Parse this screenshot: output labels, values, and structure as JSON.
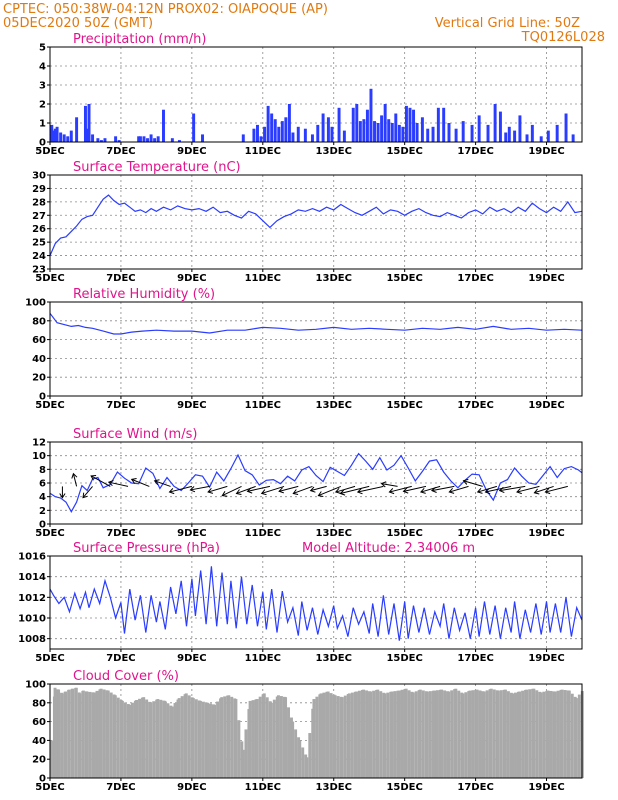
{
  "header": {
    "source_line": "CPTEC:    050:38W-04:12N   PROX02: OIAPOQUE (AP)",
    "date_line": "05DEC2020 50Z (GMT)",
    "grid_line": "Vertical Grid Line: 50Z",
    "code": "TQ0126L028"
  },
  "colors": {
    "header": "#e07a10",
    "title": "#e0148c",
    "line": "#2a3cff",
    "bar": "#2a3cff",
    "cloud": "#a9a9a9",
    "wind_arrow": "#000000",
    "grid": "#8a8a8a"
  },
  "x_axis": {
    "labels": [
      "5DEC",
      "7DEC",
      "9DEC",
      "11DEC",
      "13DEC",
      "15DEC",
      "17DEC",
      "19DEC"
    ],
    "day_range": [
      5,
      20
    ]
  },
  "chart_data": [
    {
      "id": "precip",
      "type": "bar",
      "title": "Precipitation (mm/h)",
      "ylim": [
        0,
        5
      ],
      "yticks": [
        0,
        1,
        2,
        3,
        4,
        5
      ],
      "x": [
        5.05,
        5.1,
        5.15,
        5.2,
        5.3,
        5.4,
        5.5,
        5.6,
        5.75,
        6.0,
        6.05,
        6.1,
        6.2,
        6.35,
        6.45,
        6.55,
        6.85,
        6.95,
        7.5,
        7.55,
        7.65,
        7.75,
        7.85,
        7.95,
        8.05,
        8.2,
        8.45,
        8.65,
        9.05,
        9.3,
        10.45,
        10.75,
        10.85,
        10.95,
        11.05,
        11.15,
        11.25,
        11.35,
        11.45,
        11.55,
        11.65,
        11.75,
        11.85,
        12.0,
        12.2,
        12.4,
        12.55,
        12.7,
        12.85,
        12.95,
        13.15,
        13.3,
        13.55,
        13.65,
        13.75,
        13.85,
        13.95,
        14.05,
        14.15,
        14.25,
        14.35,
        14.45,
        14.55,
        14.65,
        14.75,
        14.85,
        14.95,
        15.05,
        15.15,
        15.25,
        15.35,
        15.5,
        15.65,
        15.8,
        15.95,
        16.1,
        16.25,
        16.45,
        16.65,
        16.9,
        17.1,
        17.35,
        17.55,
        17.7,
        17.85,
        17.95,
        18.1,
        18.25,
        18.45,
        18.6,
        18.85,
        19.05,
        19.3,
        19.55,
        19.75
      ],
      "values": [
        0.9,
        0.6,
        0.7,
        0.8,
        0.5,
        0.4,
        0.3,
        0.6,
        1.3,
        1.9,
        0.7,
        2.0,
        0.4,
        0.2,
        0.1,
        0.2,
        0.3,
        0.1,
        0.3,
        0.3,
        0.3,
        0.2,
        0.4,
        0.2,
        0.3,
        1.7,
        0.2,
        0.1,
        1.5,
        0.4,
        0.4,
        0.7,
        0.9,
        0.3,
        0.8,
        1.9,
        1.5,
        1.2,
        0.8,
        1.1,
        1.3,
        2.0,
        0.5,
        0.8,
        0.7,
        0.4,
        0.9,
        1.5,
        1.3,
        0.8,
        1.8,
        0.6,
        1.8,
        2.0,
        1.1,
        1.2,
        1.7,
        2.8,
        1.1,
        1.0,
        1.4,
        2.0,
        1.2,
        1.0,
        1.5,
        0.9,
        0.8,
        1.9,
        1.8,
        1.7,
        1.0,
        1.3,
        0.7,
        0.8,
        1.8,
        1.8,
        1.0,
        0.7,
        1.1,
        0.9,
        1.4,
        0.9,
        2.0,
        1.6,
        0.5,
        0.8,
        0.6,
        1.4,
        0.4,
        0.9,
        0.3,
        0.6,
        0.9,
        1.5,
        0.4
      ]
    },
    {
      "id": "temp",
      "type": "line",
      "title": "Surface Temperature (nC)",
      "ylim": [
        23,
        30
      ],
      "yticks": [
        23,
        24,
        25,
        26,
        27,
        28,
        29,
        30
      ],
      "x": [
        5.0,
        5.15,
        5.3,
        5.45,
        5.6,
        5.75,
        5.9,
        6.05,
        6.2,
        6.35,
        6.5,
        6.65,
        6.8,
        6.95,
        7.1,
        7.25,
        7.4,
        7.55,
        7.7,
        7.85,
        8.0,
        8.2,
        8.4,
        8.6,
        8.8,
        9.0,
        9.2,
        9.4,
        9.6,
        9.8,
        10.0,
        10.2,
        10.4,
        10.6,
        10.8,
        11.0,
        11.2,
        11.4,
        11.6,
        11.8,
        12.0,
        12.2,
        12.4,
        12.6,
        12.8,
        13.0,
        13.2,
        13.4,
        13.6,
        13.8,
        14.0,
        14.2,
        14.4,
        14.6,
        14.8,
        15.0,
        15.2,
        15.4,
        15.6,
        15.8,
        16.0,
        16.2,
        16.4,
        16.6,
        16.8,
        17.0,
        17.2,
        17.4,
        17.6,
        17.8,
        18.0,
        18.2,
        18.4,
        18.6,
        18.8,
        19.0,
        19.2,
        19.4,
        19.6,
        19.8,
        20.0
      ],
      "values": [
        24.0,
        24.9,
        25.3,
        25.4,
        25.8,
        26.2,
        26.7,
        26.9,
        27.0,
        27.6,
        28.2,
        28.5,
        28.1,
        27.8,
        27.9,
        27.6,
        27.3,
        27.4,
        27.2,
        27.5,
        27.3,
        27.6,
        27.4,
        27.7,
        27.5,
        27.4,
        27.5,
        27.3,
        27.6,
        27.2,
        27.3,
        27.0,
        26.8,
        27.3,
        27.1,
        26.6,
        26.1,
        26.6,
        26.9,
        27.1,
        27.4,
        27.3,
        27.5,
        27.3,
        27.6,
        27.4,
        27.8,
        27.5,
        27.2,
        27.0,
        27.3,
        27.6,
        27.1,
        27.4,
        27.3,
        27.0,
        27.3,
        27.5,
        27.2,
        27.0,
        26.9,
        27.2,
        27.0,
        26.8,
        27.2,
        27.4,
        27.1,
        27.6,
        27.3,
        27.5,
        27.2,
        27.6,
        27.3,
        27.9,
        27.5,
        27.2,
        27.6,
        27.3,
        28.0,
        27.2,
        27.3
      ]
    },
    {
      "id": "rh",
      "type": "line",
      "title": "Relative Humidity (%)",
      "ylim": [
        0,
        100
      ],
      "yticks": [
        0,
        20,
        40,
        60,
        80,
        100
      ],
      "x": [
        5.0,
        5.2,
        5.4,
        5.6,
        5.8,
        6.0,
        6.2,
        6.5,
        6.8,
        7.0,
        7.3,
        7.6,
        8.0,
        8.5,
        9.0,
        9.5,
        10.0,
        10.5,
        11.0,
        11.5,
        12.0,
        12.5,
        13.0,
        13.5,
        14.0,
        14.5,
        15.0,
        15.5,
        16.0,
        16.5,
        17.0,
        17.5,
        18.0,
        18.5,
        19.0,
        19.5,
        20.0
      ],
      "values": [
        88,
        78,
        76,
        74,
        75,
        73,
        72,
        69,
        66,
        66,
        68,
        69,
        70,
        69,
        69,
        67,
        70,
        70,
        73,
        72,
        70,
        71,
        73,
        71,
        72,
        71,
        70,
        72,
        71,
        73,
        71,
        74,
        71,
        72,
        70,
        71,
        70
      ]
    },
    {
      "id": "wind",
      "type": "line",
      "title": "Surface Wind (m/s)",
      "ylim": [
        0,
        12
      ],
      "yticks": [
        0,
        2,
        4,
        6,
        8,
        10,
        12
      ],
      "x": [
        5.0,
        5.15,
        5.3,
        5.45,
        5.6,
        5.75,
        5.9,
        6.05,
        6.2,
        6.35,
        6.5,
        6.7,
        6.9,
        7.1,
        7.3,
        7.5,
        7.7,
        7.9,
        8.1,
        8.3,
        8.5,
        8.7,
        8.9,
        9.1,
        9.3,
        9.5,
        9.7,
        9.9,
        10.1,
        10.3,
        10.5,
        10.7,
        10.9,
        11.1,
        11.3,
        11.5,
        11.7,
        11.9,
        12.1,
        12.3,
        12.5,
        12.7,
        12.9,
        13.1,
        13.3,
        13.5,
        13.7,
        13.9,
        14.1,
        14.3,
        14.5,
        14.7,
        14.9,
        15.1,
        15.3,
        15.5,
        15.7,
        15.9,
        16.1,
        16.3,
        16.5,
        16.7,
        16.9,
        17.1,
        17.3,
        17.5,
        17.7,
        17.9,
        18.1,
        18.3,
        18.5,
        18.7,
        18.9,
        19.1,
        19.3,
        19.5,
        19.7,
        19.9,
        20.0
      ],
      "values": [
        4.5,
        4.0,
        3.8,
        3.2,
        1.8,
        3.2,
        5.6,
        4.9,
        6.6,
        6.8,
        5.3,
        5.8,
        7.6,
        6.7,
        6.0,
        5.9,
        8.2,
        7.4,
        5.2,
        6.8,
        5.5,
        4.9,
        6.0,
        7.2,
        7.0,
        5.4,
        7.6,
        6.3,
        8.1,
        10.1,
        7.8,
        7.2,
        5.7,
        6.4,
        6.5,
        5.9,
        7.0,
        6.3,
        7.9,
        8.4,
        7.1,
        6.2,
        8.3,
        7.7,
        7.1,
        8.6,
        10.3,
        9.2,
        8.0,
        9.7,
        7.9,
        8.6,
        10.0,
        8.2,
        6.3,
        7.7,
        9.2,
        9.4,
        7.6,
        6.3,
        5.3,
        6.4,
        7.3,
        7.2,
        5.0,
        3.5,
        6.0,
        6.5,
        8.2,
        7.0,
        6.0,
        5.8,
        7.1,
        8.4,
        6.8,
        8.1,
        8.4,
        7.9,
        7.5
      ],
      "vectors": {
        "x": [
          5.35,
          5.75,
          6.2,
          6.7,
          7.2,
          7.8,
          8.4,
          9.0,
          9.5,
          10.0,
          10.4,
          10.8,
          11.2,
          11.6,
          12.0,
          12.4,
          12.8,
          13.2,
          13.6,
          14.0,
          14.4,
          14.8,
          15.2,
          15.6,
          16.0,
          16.4,
          16.8,
          17.2,
          17.6,
          18.0,
          18.4,
          18.8,
          19.2,
          19.6
        ],
        "u": [
          0.0,
          -1.0,
          -3.0,
          -6.0,
          -6.0,
          -5.5,
          -5.0,
          -7.0,
          -6.0,
          -6.0,
          -6.0,
          -6.0,
          -7.0,
          -7.0,
          -6.0,
          -6.0,
          -5.0,
          -7.0,
          -6.0,
          -9.0,
          -8.0,
          -5.0,
          -7.0,
          -7.0,
          -6.0,
          -7.0,
          -6.0,
          -6.0,
          -6.0,
          -8.0,
          -8.0,
          -7.0,
          -6.0,
          -7.0
        ],
        "v": [
          -1.6,
          1.8,
          -1.6,
          1.5,
          0.6,
          1.0,
          0.8,
          -0.8,
          -0.5,
          -0.8,
          -1.3,
          -1.0,
          -0.7,
          -1.0,
          -0.7,
          -1.0,
          -0.6,
          -1.3,
          -0.8,
          -1.0,
          -0.8,
          0.4,
          -0.8,
          -0.7,
          -0.8,
          -0.6,
          -0.8,
          0.8,
          -0.8,
          -0.8,
          -0.6,
          -0.8,
          -0.9,
          -0.8
        ]
      }
    },
    {
      "id": "pressure",
      "type": "line",
      "title": "Surface Pressure (hPa)",
      "subtitle": "Model Altitude: 2.34006 m",
      "ylim": [
        1007,
        1016
      ],
      "yticks": [
        1008,
        1010,
        1012,
        1014,
        1016
      ],
      "x": [
        5.0,
        5.1,
        5.25,
        5.4,
        5.55,
        5.7,
        5.85,
        6.0,
        6.1,
        6.25,
        6.4,
        6.55,
        6.7,
        6.85,
        7.0,
        7.1,
        7.25,
        7.4,
        7.55,
        7.7,
        7.85,
        8.0,
        8.1,
        8.25,
        8.4,
        8.55,
        8.7,
        8.85,
        9.0,
        9.1,
        9.25,
        9.4,
        9.55,
        9.7,
        9.85,
        10.0,
        10.1,
        10.25,
        10.4,
        10.55,
        10.7,
        10.85,
        11.0,
        11.1,
        11.25,
        11.4,
        11.55,
        11.7,
        11.85,
        12.0,
        12.1,
        12.25,
        12.4,
        12.55,
        12.7,
        12.85,
        13.0,
        13.1,
        13.25,
        13.4,
        13.55,
        13.7,
        13.85,
        14.0,
        14.1,
        14.25,
        14.4,
        14.55,
        14.7,
        14.85,
        15.0,
        15.1,
        15.25,
        15.4,
        15.55,
        15.7,
        15.85,
        16.0,
        16.1,
        16.25,
        16.4,
        16.55,
        16.7,
        16.85,
        17.0,
        17.1,
        17.25,
        17.4,
        17.55,
        17.7,
        17.85,
        18.0,
        18.1,
        18.25,
        18.4,
        18.55,
        18.7,
        18.85,
        19.0,
        19.1,
        19.25,
        19.4,
        19.55,
        19.7,
        19.85,
        20.0
      ],
      "values": [
        1012.8,
        1012.2,
        1011.4,
        1012.0,
        1010.6,
        1012.4,
        1010.9,
        1012.5,
        1011.0,
        1012.8,
        1011.4,
        1013.6,
        1012.0,
        1010.0,
        1011.5,
        1008.5,
        1012.8,
        1009.8,
        1012.2,
        1008.6,
        1012.2,
        1009.6,
        1011.6,
        1008.9,
        1013.0,
        1010.4,
        1013.6,
        1009.2,
        1013.8,
        1010.2,
        1014.6,
        1009.4,
        1015.0,
        1009.2,
        1014.4,
        1009.4,
        1013.6,
        1009.0,
        1014.0,
        1009.4,
        1013.2,
        1009.2,
        1012.5,
        1008.9,
        1012.8,
        1008.6,
        1012.6,
        1009.6,
        1011.0,
        1008.3,
        1011.6,
        1008.8,
        1011.0,
        1008.4,
        1010.8,
        1009.2,
        1011.2,
        1009.0,
        1010.2,
        1008.2,
        1011.0,
        1009.4,
        1010.6,
        1008.5,
        1011.4,
        1008.2,
        1012.2,
        1008.4,
        1011.4,
        1007.8,
        1011.6,
        1008.0,
        1011.2,
        1008.6,
        1011.0,
        1008.4,
        1010.6,
        1009.2,
        1011.4,
        1008.0,
        1011.0,
        1008.8,
        1010.5,
        1008.0,
        1011.0,
        1008.2,
        1011.6,
        1008.4,
        1011.2,
        1008.0,
        1011.0,
        1008.6,
        1011.6,
        1008.0,
        1010.8,
        1008.6,
        1011.4,
        1008.4,
        1011.6,
        1008.6,
        1011.4,
        1008.6,
        1012.0,
        1008.2,
        1011.0,
        1009.8
      ]
    },
    {
      "id": "cloud",
      "type": "area",
      "title": "Cloud Cover (%)",
      "ylim": [
        0,
        100
      ],
      "yticks": [
        0,
        20,
        40,
        60,
        80,
        100
      ],
      "x": [
        5.0,
        5.1,
        5.2,
        5.3,
        5.4,
        5.5,
        5.6,
        5.7,
        5.8,
        5.9,
        6.0,
        6.2,
        6.4,
        6.6,
        6.8,
        7.0,
        7.2,
        7.4,
        7.6,
        7.8,
        8.0,
        8.2,
        8.4,
        8.6,
        8.8,
        9.0,
        9.2,
        9.4,
        9.6,
        9.8,
        10.0,
        10.2,
        10.4,
        10.6,
        10.8,
        11.0,
        11.2,
        11.4,
        11.6,
        11.8,
        12.0,
        12.2,
        12.4,
        12.6,
        12.8,
        13.0,
        13.2,
        13.4,
        13.6,
        13.8,
        14.0,
        14.2,
        14.4,
        14.6,
        14.8,
        15.0,
        15.2,
        15.4,
        15.6,
        15.8,
        16.0,
        16.2,
        16.4,
        16.6,
        16.8,
        17.0,
        17.2,
        17.4,
        17.6,
        17.8,
        18.0,
        18.2,
        18.4,
        18.6,
        18.8,
        19.0,
        19.2,
        19.4,
        19.6,
        19.8,
        20.0
      ],
      "values": [
        40,
        96,
        94,
        90,
        92,
        94,
        95,
        96,
        90,
        93,
        92,
        91,
        95,
        93,
        88,
        82,
        78,
        83,
        86,
        80,
        84,
        82,
        76,
        85,
        90,
        85,
        82,
        80,
        78,
        86,
        88,
        84,
        30,
        82,
        84,
        90,
        80,
        88,
        86,
        60,
        40,
        22,
        84,
        90,
        92,
        88,
        86,
        90,
        92,
        94,
        92,
        94,
        90,
        92,
        93,
        95,
        91,
        94,
        92,
        93,
        94,
        92,
        95,
        90,
        93,
        94,
        92,
        95,
        93,
        94,
        90,
        92,
        94,
        95,
        91,
        93,
        92,
        94,
        93,
        85,
        94
      ]
    }
  ]
}
